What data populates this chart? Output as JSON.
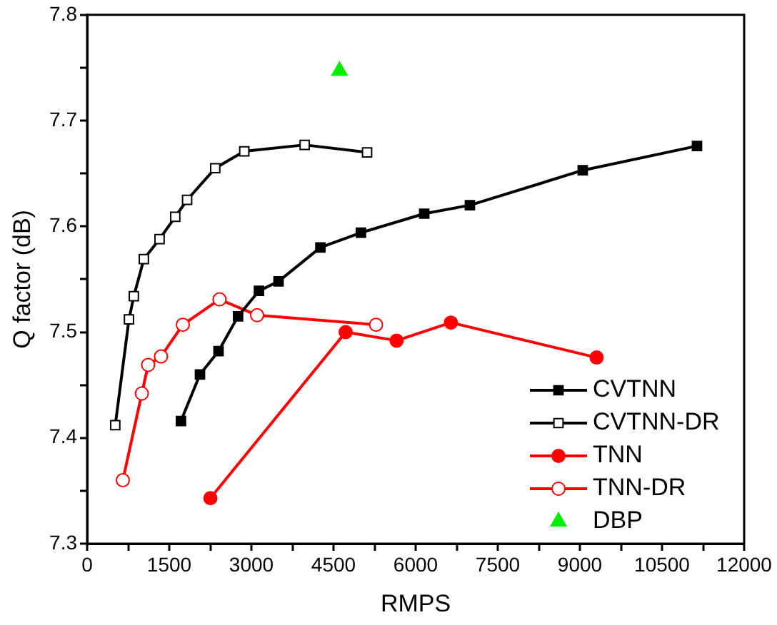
{
  "chart_data": {
    "type": "line",
    "xlabel": "RMPS",
    "ylabel": "Q factor (dB)",
    "xlim": [
      0,
      12000
    ],
    "ylim": [
      7.3,
      7.8
    ],
    "xticks": [
      0,
      {
        "value": 750,
        "label": null
      },
      1500,
      {
        "value": 2250,
        "label": null
      },
      3000,
      {
        "value": 3750,
        "label": null
      },
      4500,
      {
        "value": 5250,
        "label": null
      },
      6000,
      {
        "value": 6750,
        "label": null
      },
      7500,
      {
        "value": 8250,
        "label": null
      },
      9000,
      {
        "value": 9750,
        "label": null
      },
      10500,
      {
        "value": 11250,
        "label": null
      },
      12000
    ],
    "yticks": [
      7.3,
      {
        "value": 7.35,
        "label": null
      },
      7.4,
      {
        "value": 7.45,
        "label": null
      },
      7.5,
      {
        "value": 7.55,
        "label": null
      },
      7.6,
      {
        "value": 7.65,
        "label": null
      },
      7.7,
      {
        "value": 7.75,
        "label": null
      },
      7.8
    ],
    "legend": "bottom right",
    "grid": false,
    "line_style": "solid",
    "series": [
      {
        "name": "CVTNN",
        "color": "#000000",
        "marker": "square",
        "x": [
          1714,
          2061,
          2400,
          2757,
          3138,
          3496,
          4260,
          5001,
          6157,
          6991,
          9052,
          11139
        ],
        "values": [
          7.416,
          7.46,
          7.482,
          7.515,
          7.539,
          7.548,
          7.58,
          7.594,
          7.612,
          7.62,
          7.653,
          7.676
        ]
      },
      {
        "name": "CVTNN-DR",
        "color": "#000000",
        "marker": "square-open",
        "x": [
          514,
          764,
          853,
          1036,
          1323,
          1610,
          1826,
          2340,
          2870,
          3973,
          5113
        ],
        "values": [
          7.412,
          7.512,
          7.534,
          7.569,
          7.588,
          7.609,
          7.625,
          7.655,
          7.671,
          7.677,
          7.67
        ]
      },
      {
        "name": "TNN",
        "color": "#ff0000",
        "marker": "circle",
        "x": [
          2251,
          4722,
          5652,
          6644,
          9305
        ],
        "values": [
          7.343,
          7.5,
          7.492,
          7.509,
          7.476
        ]
      },
      {
        "name": "TNN-DR",
        "color": "#ff0000",
        "marker": "circle-open",
        "x": [
          652,
          999,
          1114,
          1349,
          1748,
          2418,
          3104,
          5277
        ],
        "values": [
          7.36,
          7.442,
          7.469,
          7.477,
          7.507,
          7.531,
          7.516,
          7.507
        ]
      },
      {
        "name": "DBP",
        "type": "scatter",
        "color": "#00ee00",
        "marker": "triangle",
        "x": [
          4609
        ],
        "values": [
          7.747
        ]
      }
    ]
  }
}
